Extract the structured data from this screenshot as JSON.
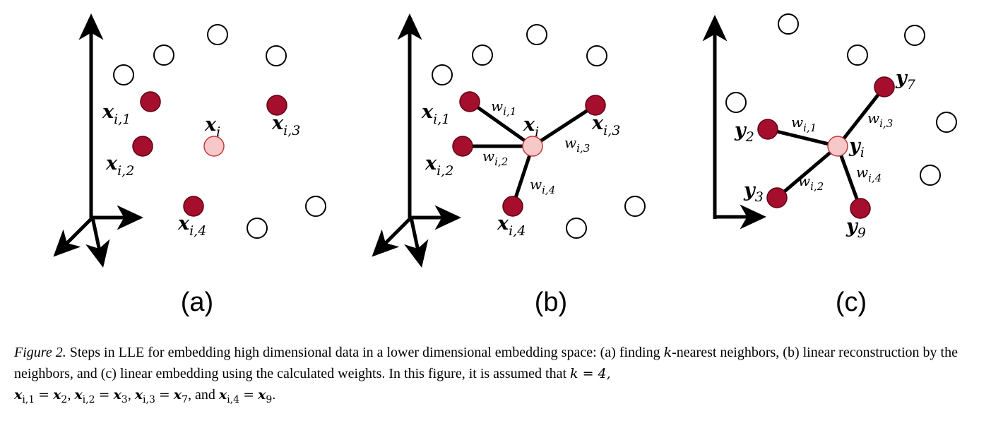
{
  "figure": {
    "panels": [
      {
        "label": "(a)",
        "center": {
          "sym": "x",
          "sub": "i"
        },
        "neighbors": [
          {
            "sym": "x",
            "sub": "i,1"
          },
          {
            "sym": "x",
            "sub": "i,2"
          },
          {
            "sym": "x",
            "sub": "i,3"
          },
          {
            "sym": "x",
            "sub": "i,4"
          }
        ]
      },
      {
        "label": "(b)",
        "center": {
          "sym": "x",
          "sub": "i"
        },
        "neighbors": [
          {
            "sym": "x",
            "sub": "i,1"
          },
          {
            "sym": "x",
            "sub": "i,2"
          },
          {
            "sym": "x",
            "sub": "i,3"
          },
          {
            "sym": "x",
            "sub": "i,4"
          }
        ],
        "weights": [
          {
            "sym": "w",
            "sub": "i,1"
          },
          {
            "sym": "w",
            "sub": "i,2"
          },
          {
            "sym": "w",
            "sub": "i,3"
          },
          {
            "sym": "w",
            "sub": "i,4"
          }
        ]
      },
      {
        "label": "(c)",
        "center": {
          "sym": "y",
          "sub": "i"
        },
        "neighbors": [
          {
            "sym": "y",
            "sub": "2"
          },
          {
            "sym": "y",
            "sub": "3"
          },
          {
            "sym": "y",
            "sub": "7"
          },
          {
            "sym": "y",
            "sub": "9"
          }
        ],
        "weights": [
          {
            "sym": "w",
            "sub": "i,1"
          },
          {
            "sym": "w",
            "sub": "i,2"
          },
          {
            "sym": "w",
            "sub": "i,3"
          },
          {
            "sym": "w",
            "sub": "i,4"
          }
        ]
      }
    ],
    "colors": {
      "neighbor_fill": "#a50f2d",
      "neighbor_stroke": "#5e0010",
      "center_fill": "#f6c8c8",
      "center_stroke": "#c0393b",
      "other_stroke": "#000000",
      "line": "#000000"
    }
  },
  "caption": {
    "label": "Figure 2.",
    "text1": "Steps in LLE for embedding high dimensional data in a lower dimensional embedding space: (a) finding",
    "k": "k",
    "text2": "-nearest neighbors, (b) linear reconstruction by the neighbors, and (c) linear embedding using the calculated weights. In this figure, it is assumed that",
    "k_eq": "k = 4,",
    "eq1_lhs": "x",
    "eq1_lhs_sub": "i,1",
    "eq1_rhs": "x",
    "eq1_rhs_sub": "2",
    "eq2_lhs": "x",
    "eq2_lhs_sub": "i,2",
    "eq2_rhs": "x",
    "eq2_rhs_sub": "3",
    "eq3_lhs": "x",
    "eq3_lhs_sub": "i,3",
    "eq3_rhs": "x",
    "eq3_rhs_sub": "7",
    "and": ", and",
    "eq4_lhs": "x",
    "eq4_lhs_sub": "i,4",
    "eq4_rhs": "x",
    "eq4_rhs_sub": "9",
    "end": "."
  }
}
